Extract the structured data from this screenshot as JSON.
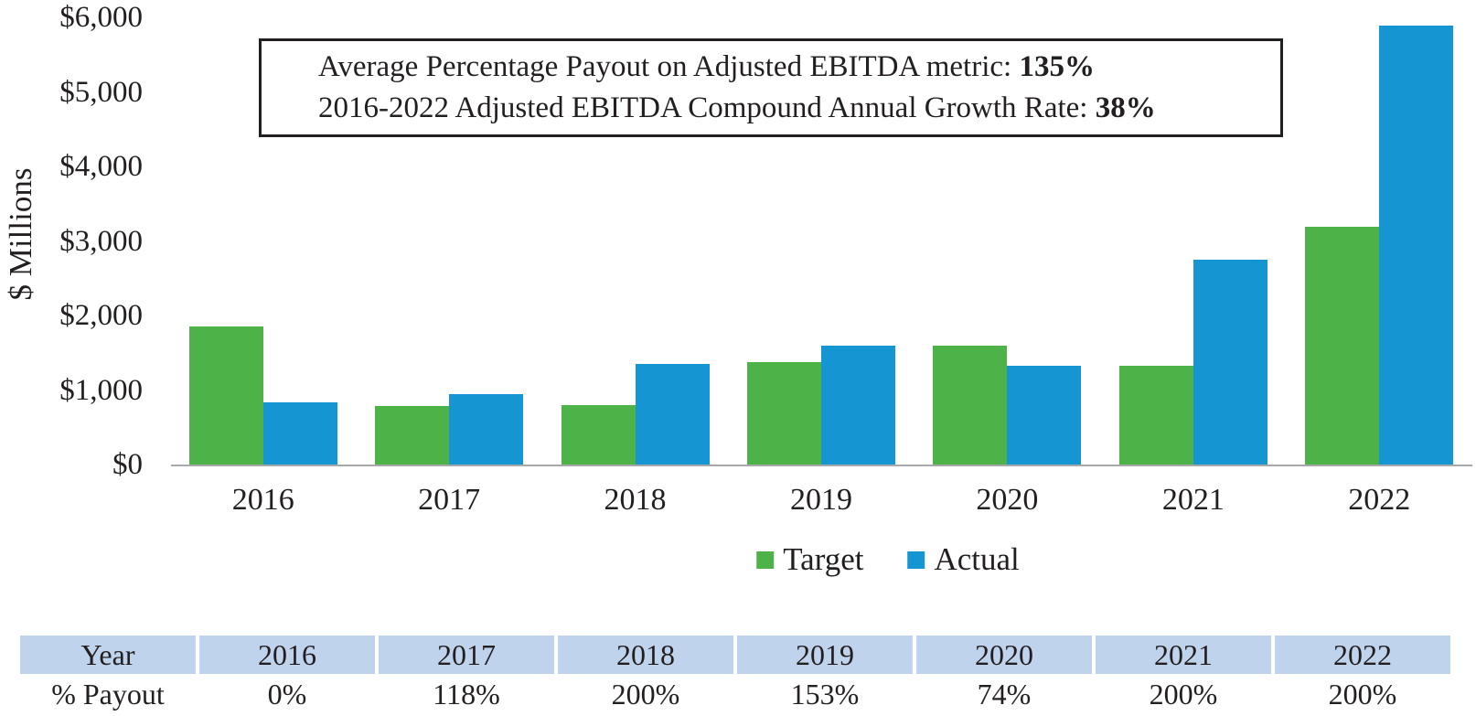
{
  "figure": {
    "text_color": "#231f20",
    "axis_line_color": "#a7a9ac",
    "background": "#ffffff"
  },
  "chart": {
    "y_axis_label": "$ Millions",
    "y_ticks": [
      {
        "label": "$6,000",
        "value": 6000
      },
      {
        "label": "$5,000",
        "value": 5000
      },
      {
        "label": "$4,000",
        "value": 4000
      },
      {
        "label": "$3,000",
        "value": 3000
      },
      {
        "label": "$2,000",
        "value": 2000
      },
      {
        "label": "$1,000",
        "value": 1000
      },
      {
        "label": "$0",
        "value": 0
      }
    ],
    "annotation": {
      "line1_label": "Average Percentage Payout on Adjusted EBITDA metric: ",
      "line1_value": "135%",
      "line2_label": "2016-2022 Adjusted EBITDA Compound Annual Growth Rate: ",
      "line2_value": "38%"
    },
    "legend": [
      {
        "label": "Target",
        "color": "#4db348"
      },
      {
        "label": "Actual",
        "color": "#1695d3"
      }
    ]
  },
  "chart_data": {
    "type": "bar",
    "title": "",
    "xlabel": "",
    "ylabel": "$ Millions",
    "ylim": [
      0,
      6000
    ],
    "y_tick_step": 1000,
    "grid": false,
    "legend_position": "bottom",
    "categories": [
      "2016",
      "2017",
      "2018",
      "2019",
      "2020",
      "2021",
      "2022"
    ],
    "series": [
      {
        "name": "Target",
        "color": "#4db348",
        "values": [
          1850,
          790,
          795,
          1375,
          1590,
          1330,
          3190
        ]
      },
      {
        "name": "Actual",
        "color": "#1695d3",
        "values": [
          835,
          945,
          1355,
          1590,
          1330,
          2745,
          5890
        ]
      }
    ],
    "annotations": [
      "Average Percentage Payout on Adjusted EBITDA metric: 135%",
      "2016-2022 Adjusted EBITDA Compound Annual Growth Rate: 38%"
    ]
  },
  "table": {
    "header_bg": "#c0d3ed",
    "header_row": [
      "Year",
      "2016",
      "2017",
      "2018",
      "2019",
      "2020",
      "2021",
      "2022"
    ],
    "data_row": [
      "% Payout",
      "0%",
      "118%",
      "200%",
      "153%",
      "74%",
      "200%",
      "200%"
    ]
  }
}
